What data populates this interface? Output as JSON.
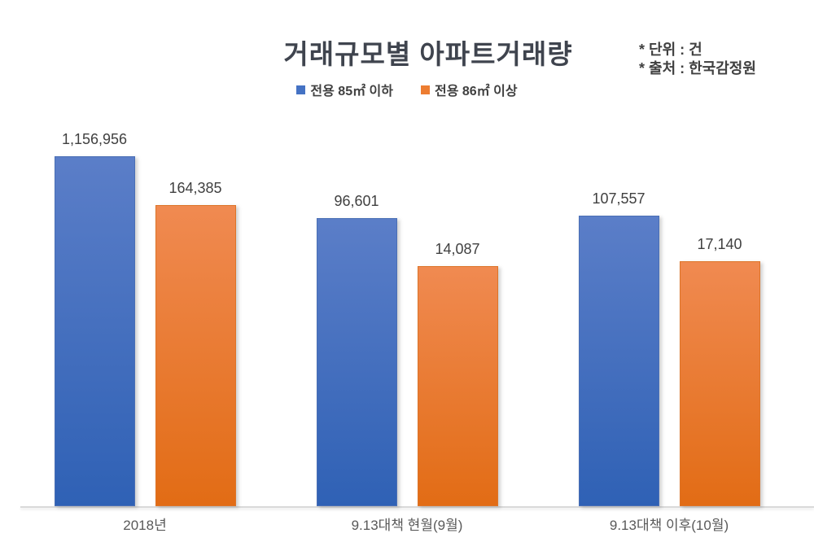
{
  "title": "거래규모별 아파트거래량",
  "notes": {
    "unit": "* 단위 : 건",
    "source": "* 출처 : 한국감정원"
  },
  "chart_data": {
    "type": "bar",
    "title": "거래규모별 아파트거래량",
    "categories": [
      "2018년",
      "9.13대책 현월(9월)",
      "9.13대책 이후(10월)"
    ],
    "series": [
      {
        "name": "전용 85㎡ 이하",
        "values": [
          1156956,
          96601,
          107557
        ],
        "labels": [
          "1,156,956",
          "96,601",
          "107,557"
        ],
        "legend_color": "#4472c4",
        "fill_top": "#5b7ec8",
        "fill_bottom": "#2f61b5",
        "border_color": "#4a6fb5"
      },
      {
        "name": "전용 86㎡ 이상",
        "values": [
          164385,
          14087,
          17140
        ],
        "labels": [
          "164,385",
          "14,087",
          "17,140"
        ],
        "legend_color": "#ed7d31",
        "fill_top": "#f08a51",
        "fill_bottom": "#e26c15",
        "border_color": "#dd7428"
      }
    ],
    "scale": "log10",
    "value_axis_visible": false,
    "gridlines": false,
    "legend_position": "top",
    "axis_line_color": "#d9d9d9",
    "unit_note": "* 단위 : 건",
    "source_note": "* 출처 : 한국감정원"
  }
}
